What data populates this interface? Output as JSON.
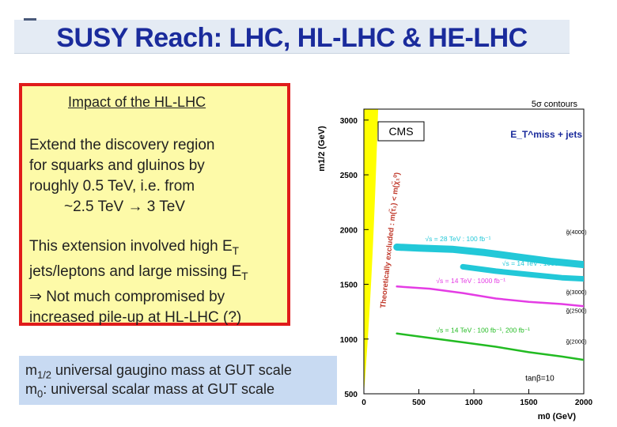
{
  "slide": {
    "title": "SUSY Reach: LHC, HL-LHC & HE-LHC"
  },
  "impact_box": {
    "heading": "Impact of the HL-LHC",
    "para1_line1": "Extend the discovery region",
    "para1_line2": "for squarks and gluinos by",
    "para1_line3": "roughly 0.5 TeV, i.e. from",
    "para1_line4": "~2.5 TeV → 3 TeV",
    "para2_line1": "This extension involved high E",
    "para2_line1_sub": "T",
    "para2_line2": "jets/leptons and large missing E",
    "para2_line2_sub": "T",
    "para2_line3": "⇒ Not much compromised by",
    "para2_line4": "increased pile-up at HL-LHC (?)"
  },
  "definitions": {
    "m12_symbol": "m",
    "m12_sub": "1/2",
    "m12_text": " universal gaugino mass at GUT scale",
    "m0_symbol": "m",
    "m0_sub": "0",
    "m0_text": ":   universal scalar mass at GUT scale"
  },
  "colors": {
    "title": "#1a2b9c",
    "box_border": "#e01b1b",
    "box_fill": "#fdfaa8",
    "defs_fill": "#c8daf2",
    "excluded": "#ffff00",
    "cyan": "#22c8d8",
    "magenta": "#e43ce4",
    "green": "#22bb22"
  },
  "chart_data": {
    "type": "line",
    "title": "5σ contours",
    "experiment_label": "CMS",
    "channel_label": "E_T^miss + jets",
    "xlabel": "m0 (GeV)",
    "ylabel": "m1/2 (GeV)",
    "xlim": [
      0,
      2000
    ],
    "ylim": [
      500,
      3100
    ],
    "xticks": [
      0,
      500,
      1000,
      1500,
      2000
    ],
    "yticks": [
      500,
      1000,
      1500,
      2000,
      2500,
      3000
    ],
    "excluded_region_label": "Theoretically excluded  :  m(τ̃₁) < m(χ̃₁⁰)",
    "tanbeta_label": "tanβ=10",
    "series": [
      {
        "name": "√s = 28 TeV : 100 fb⁻¹",
        "color": "cyan",
        "x": [
          300,
          500,
          800,
          1100,
          1400,
          1700,
          2000
        ],
        "y": [
          1840,
          1830,
          1820,
          1790,
          1750,
          1710,
          1680
        ]
      },
      {
        "name": "√s = 14 TeV : 1000 fb⁻¹,  2000 fb⁻¹",
        "color": "cyan",
        "x": [
          900,
          1200,
          1500,
          1800,
          2000
        ],
        "y": [
          1660,
          1620,
          1590,
          1560,
          1550
        ]
      },
      {
        "name": "√s = 14 TeV : 1000 fb⁻¹",
        "color": "magenta",
        "x": [
          300,
          600,
          900,
          1200,
          1500,
          1800,
          2000
        ],
        "y": [
          1480,
          1460,
          1420,
          1370,
          1340,
          1320,
          1300
        ]
      },
      {
        "name": "√s = 14 TeV : 100 fb⁻¹,  200 fb⁻¹",
        "color": "green",
        "x": [
          300,
          600,
          900,
          1200,
          1500,
          1800,
          2000
        ],
        "y": [
          1050,
          1010,
          970,
          930,
          880,
          840,
          810
        ]
      }
    ],
    "annotations": [
      {
        "text": "g̃(4000)",
        "x": 1840,
        "y": 1960
      },
      {
        "text": "g̃(3000)",
        "x": 1840,
        "y": 1410
      },
      {
        "text": "g̃(2500)",
        "x": 1840,
        "y": 1240
      },
      {
        "text": "g̃(2000)",
        "x": 1840,
        "y": 960
      }
    ]
  }
}
